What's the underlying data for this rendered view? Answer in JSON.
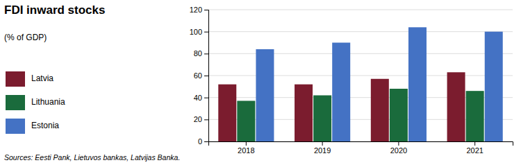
{
  "chart_data": {
    "type": "bar",
    "title": "FDI inward stocks",
    "subtitle": "(% of GDP)",
    "annotations": [
      "Sources: Eesti Pank, Lietuvos bankas, Latvijas Banka."
    ],
    "categories": [
      "2018",
      "2019",
      "2020",
      "2021"
    ],
    "series": [
      {
        "name": "Latvia",
        "color": "#7B1C2E",
        "values": [
          52,
          52,
          57,
          63
        ]
      },
      {
        "name": "Lithuania",
        "color": "#1A6B3C",
        "values": [
          37,
          42,
          48,
          46
        ]
      },
      {
        "name": "Estonia",
        "color": "#4472C4",
        "values": [
          84,
          90,
          104,
          100
        ]
      }
    ],
    "ylim": [
      0,
      120
    ],
    "yticks": [
      0,
      20,
      40,
      60,
      80,
      100,
      120
    ],
    "grid": true,
    "legend": "left"
  }
}
